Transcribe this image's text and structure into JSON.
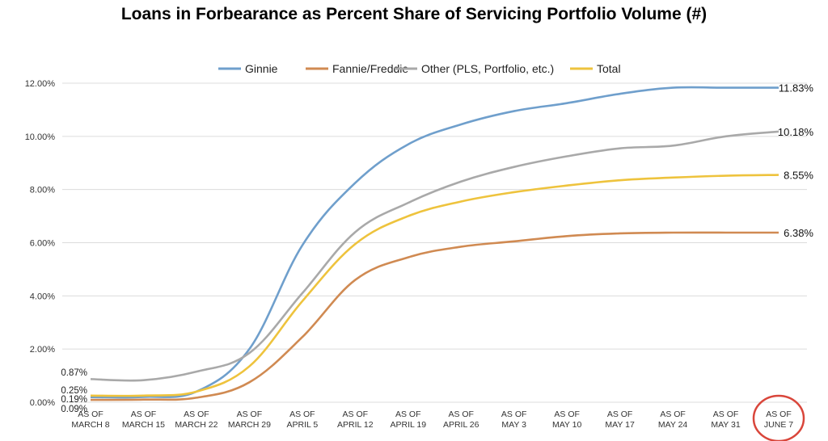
{
  "chart_data": {
    "type": "line",
    "title": "Loans in Forbearance as Percent Share of Servicing Portfolio Volume (#)",
    "xlabel": "",
    "ylabel": "",
    "ylim": [
      0,
      12
    ],
    "y_ticks": [
      "0.00%",
      "2.00%",
      "4.00%",
      "6.00%",
      "8.00%",
      "10.00%",
      "12.00%"
    ],
    "grid": true,
    "legend_position": "top",
    "categories": [
      [
        "AS OF",
        "MARCH 8"
      ],
      [
        "AS OF",
        "MARCH 15"
      ],
      [
        "AS OF",
        "MARCH 22"
      ],
      [
        "AS OF",
        "MARCH 29"
      ],
      [
        "AS OF",
        "APRIL 5"
      ],
      [
        "AS OF",
        "APRIL 12"
      ],
      [
        "AS OF",
        "APRIL 19"
      ],
      [
        "AS OF",
        "APRIL 26"
      ],
      [
        "AS OF",
        "MAY 3"
      ],
      [
        "AS OF",
        "MAY 10"
      ],
      [
        "AS OF",
        "MAY 17"
      ],
      [
        "AS OF",
        "MAY 24"
      ],
      [
        "AS OF",
        "MAY 31"
      ],
      [
        "AS OF",
        "JUNE 7"
      ]
    ],
    "series": [
      {
        "name": "Ginnie",
        "color": "#6f9fcc",
        "values": [
          0.19,
          0.2,
          0.4,
          2.0,
          5.9,
          8.25,
          9.7,
          10.45,
          10.95,
          11.25,
          11.6,
          11.83,
          11.83,
          11.83
        ],
        "end_label": "11.83%",
        "start_label": "0.19%"
      },
      {
        "name": "Fannie/Freddie",
        "color": "#d08a52",
        "values": [
          0.09,
          0.1,
          0.17,
          0.75,
          2.45,
          4.6,
          5.45,
          5.85,
          6.05,
          6.25,
          6.35,
          6.38,
          6.38,
          6.38
        ],
        "end_label": "6.38%",
        "start_label": "0.09%"
      },
      {
        "name": "Other (PLS, Portfolio, etc.)",
        "color": "#a9a9a9",
        "values": [
          0.87,
          0.83,
          1.15,
          1.85,
          4.1,
          6.4,
          7.5,
          8.3,
          8.85,
          9.25,
          9.55,
          9.65,
          10.0,
          10.18
        ],
        "end_label": "10.18%",
        "start_label": "0.87%"
      },
      {
        "name": "Total",
        "color": "#eec33d",
        "values": [
          0.25,
          0.25,
          0.4,
          1.35,
          3.8,
          5.95,
          7.0,
          7.55,
          7.9,
          8.15,
          8.35,
          8.45,
          8.52,
          8.55
        ],
        "end_label": "8.55%",
        "start_label": "0.25%"
      }
    ],
    "highlight": {
      "category_index": 13,
      "color": "#d9463b"
    }
  }
}
